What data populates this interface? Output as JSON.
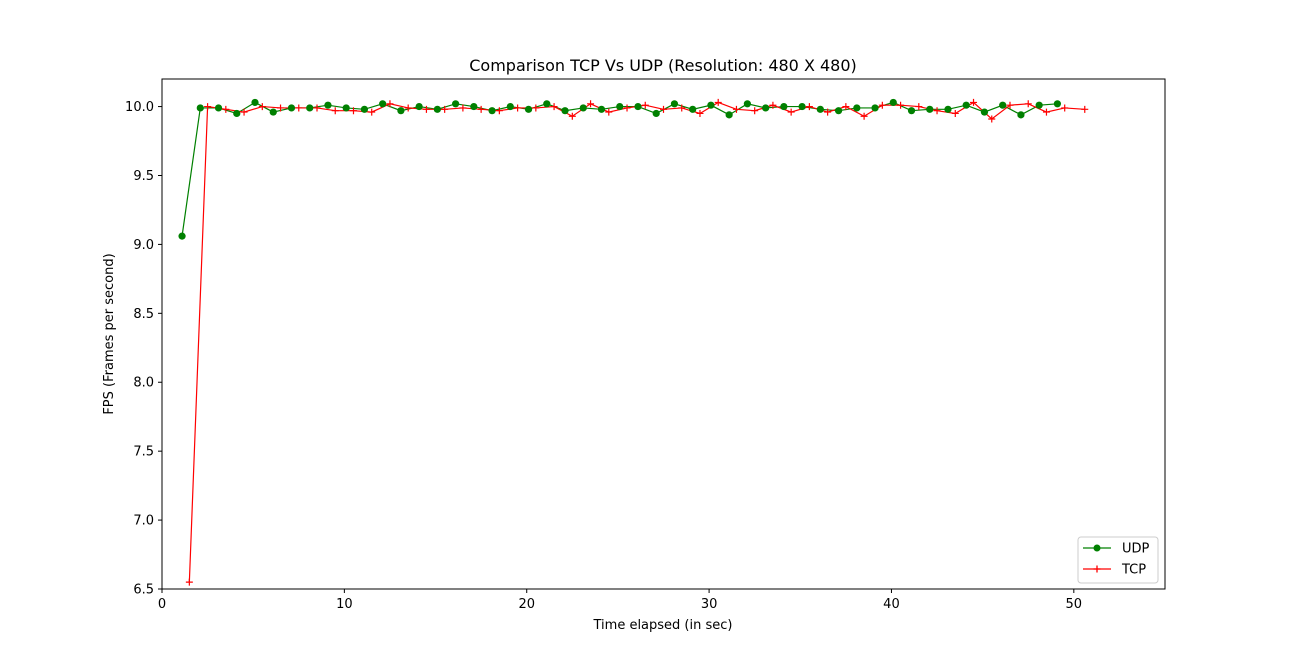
{
  "chart_data": {
    "type": "line",
    "title": "Comparison TCP Vs UDP (Resolution: 480 X 480)",
    "xlabel": "Time elapsed (in sec)",
    "ylabel": "FPS (Frames per second)",
    "xlim": [
      0,
      55
    ],
    "ylim": [
      6.5,
      10.2
    ],
    "xticks": [
      0,
      10,
      20,
      30,
      40,
      50
    ],
    "yticks": [
      6.5,
      7.0,
      7.5,
      8.0,
      8.5,
      9.0,
      9.5,
      10.0
    ],
    "grid": false,
    "legend_position": "bottom-right",
    "series": [
      {
        "name": "UDP",
        "color": "#008000",
        "marker": "circle",
        "x": [
          1.1,
          2.1,
          3.1,
          4.1,
          5.1,
          6.1,
          7.1,
          8.1,
          9.1,
          10.1,
          11.1,
          12.1,
          13.1,
          14.1,
          15.1,
          16.1,
          17.1,
          18.1,
          19.1,
          20.1,
          21.1,
          22.1,
          23.1,
          24.1,
          25.1,
          26.1,
          27.1,
          28.1,
          29.1,
          30.1,
          31.1,
          32.1,
          33.1,
          34.1,
          35.1,
          36.1,
          37.1,
          38.1,
          39.1,
          40.1,
          41.1,
          42.1,
          43.1,
          44.1,
          45.1,
          46.1,
          47.1,
          48.1,
          49.1
        ],
        "y": [
          9.06,
          9.99,
          9.99,
          9.95,
          10.03,
          9.96,
          9.99,
          9.99,
          10.01,
          9.99,
          9.98,
          10.02,
          9.97,
          10.0,
          9.98,
          10.02,
          10.0,
          9.97,
          10.0,
          9.98,
          10.02,
          9.97,
          9.99,
          9.98,
          10.0,
          10.0,
          9.95,
          10.02,
          9.98,
          10.01,
          9.94,
          10.02,
          9.99,
          10.0,
          10.0,
          9.98,
          9.97,
          9.99,
          9.99,
          10.03,
          9.97,
          9.98,
          9.98,
          10.01,
          9.96,
          10.01,
          9.94,
          10.01,
          10.02
        ]
      },
      {
        "name": "TCP",
        "color": "#ff0000",
        "marker": "plus",
        "x": [
          1.5,
          2.5,
          3.5,
          4.5,
          5.5,
          6.5,
          7.5,
          8.5,
          9.5,
          10.5,
          11.5,
          12.5,
          13.5,
          14.5,
          15.5,
          16.5,
          17.5,
          18.5,
          19.5,
          20.5,
          21.5,
          22.5,
          23.5,
          24.5,
          25.5,
          26.5,
          27.5,
          28.5,
          29.5,
          30.5,
          31.5,
          32.5,
          33.5,
          34.5,
          35.5,
          36.5,
          37.5,
          38.5,
          39.5,
          40.5,
          41.5,
          42.5,
          43.5,
          44.5,
          45.5,
          46.5,
          47.5,
          48.5,
          49.5,
          50.6
        ],
        "y": [
          6.55,
          10.0,
          9.98,
          9.96,
          10.0,
          9.99,
          9.99,
          9.99,
          9.97,
          9.97,
          9.96,
          10.02,
          9.99,
          9.98,
          9.98,
          9.99,
          9.98,
          9.97,
          9.99,
          9.99,
          10.0,
          9.93,
          10.02,
          9.96,
          9.99,
          10.01,
          9.98,
          9.99,
          9.95,
          10.03,
          9.98,
          9.97,
          10.01,
          9.96,
          10.0,
          9.96,
          10.0,
          9.93,
          10.01,
          10.01,
          10.0,
          9.97,
          9.95,
          10.03,
          9.91,
          10.01,
          10.02,
          9.96,
          9.99,
          9.98
        ]
      }
    ]
  }
}
